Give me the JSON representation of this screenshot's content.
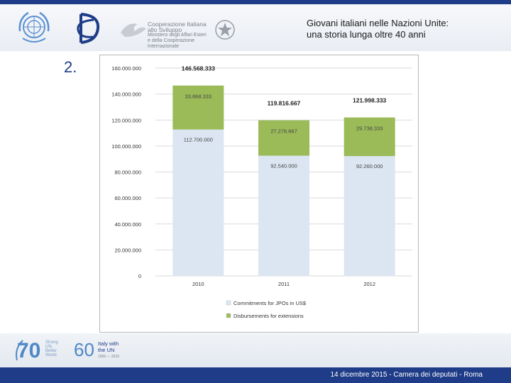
{
  "header": {
    "title_line1": "Giovani italiani nelle Nazioni Unite:",
    "title_line2": "una storia lunga oltre 40 anni",
    "coop_line1": "Cooperazione Italiana",
    "coop_line2": "allo Sviluppo",
    "coop_line3": "Ministero degli Affari Esteri",
    "coop_line4": "e della Cooperazione Internazionale"
  },
  "slide": {
    "number": "2."
  },
  "footer": {
    "text": "14 dicembre 2015 - Camera dei deputati - Roma",
    "badge70_number": "70",
    "badge70_tagline": "Strong UN. Better World.",
    "badge60_number": "60",
    "badge60_line1": "Italy with",
    "badge60_line2": "the UN",
    "badge60_years": "1955 — 2015"
  },
  "colors": {
    "commitments": "#dce6f2",
    "disbursements": "#9bbb59",
    "brand_blue": "#1f3c88"
  },
  "chart_data": {
    "type": "bar",
    "stacked": true,
    "categories": [
      "2010",
      "2011",
      "2012"
    ],
    "series": [
      {
        "name": "Commitments for JPOs in US$",
        "values": [
          112700000,
          92540000,
          92260000
        ],
        "labels": [
          "112.700.000",
          "92.540.000",
          "92.260.000"
        ],
        "color": "#dce6f2"
      },
      {
        "name": "Disbursements for extensions",
        "values": [
          33868333,
          27276667,
          29738333
        ],
        "labels": [
          "33.868.333",
          "27.276.667",
          "29.738.333"
        ],
        "color": "#9bbb59"
      }
    ],
    "totals": [
      146568333,
      119816667,
      121998333
    ],
    "total_labels": [
      "146.568.333",
      "119.816.667",
      "121.998.333"
    ],
    "ylim": [
      0,
      160000000
    ],
    "yticks": [
      0,
      20000000,
      40000000,
      60000000,
      80000000,
      100000000,
      120000000,
      140000000,
      160000000
    ],
    "ytick_labels": [
      "0",
      "20.000.000",
      "40.000.000",
      "60.000.000",
      "80.000.000",
      "100.000.000",
      "120.000.000",
      "140.000.000",
      "160.000.000"
    ],
    "grid": true,
    "legend_position": "bottom"
  }
}
